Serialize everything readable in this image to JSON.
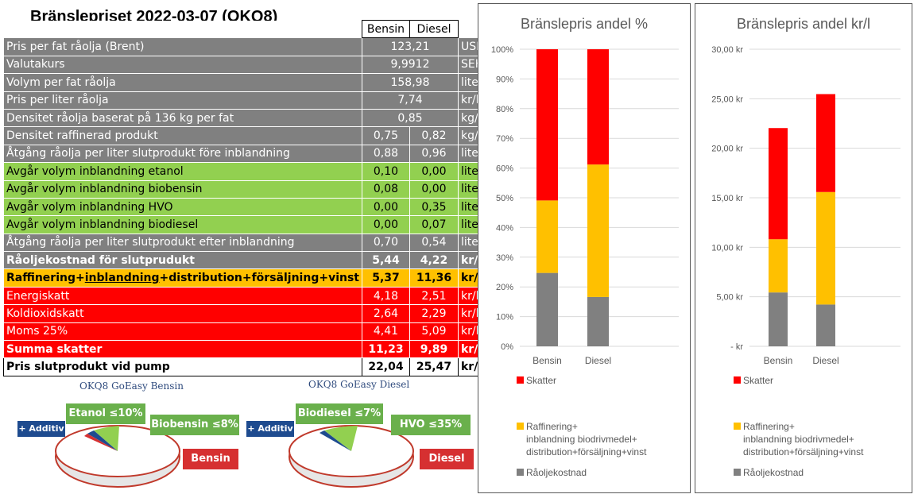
{
  "title": "Bränslepriset 2022-03-07 (OKQ8)",
  "table": {
    "col_bensin": "Bensin",
    "col_diesel": "Diesel",
    "merged_rows": [
      {
        "label": "Pris per fat råolja (Brent)",
        "value": "123,21",
        "unit": "USD"
      },
      {
        "label": "Valutakurs",
        "value": "9,9912",
        "unit": "SEK/USD"
      },
      {
        "label": "Volym per fat råolja",
        "value": "158,98",
        "unit": "liter"
      },
      {
        "label": "Pris per liter råolja",
        "value": "7,74",
        "unit": "kr/liter"
      },
      {
        "label": "Densitet råolja baserat på 136 kg per fat",
        "value": "0,85",
        "unit": "kg/liter"
      }
    ],
    "rows": [
      {
        "label": "Densitet raffinerad produkt",
        "bensin": "0,75",
        "diesel": "0,82",
        "unit": "kg/liter"
      },
      {
        "label": "Åtgång råolja per liter slutprodukt före inblandning",
        "bensin": "0,88",
        "diesel": "0,96",
        "unit": "liter"
      },
      {
        "label": "Avgår volym inblandning etanol",
        "bensin": "0,10",
        "diesel": "0,00",
        "unit": "liter"
      },
      {
        "label": "Avgår volym inblandning biobensin",
        "bensin": "0,08",
        "diesel": "0,00",
        "unit": "liter"
      },
      {
        "label": "Avgår volym inblandning HVO",
        "bensin": "0,00",
        "diesel": "0,35",
        "unit": "liter"
      },
      {
        "label": "Avgår volym inblandning biodiesel",
        "bensin": "0,00",
        "diesel": "0,07",
        "unit": "liter"
      },
      {
        "label": "Åtgång råolja per liter slutprodukt efter inblandning",
        "bensin": "0,70",
        "diesel": "0,54",
        "unit": "liter"
      },
      {
        "label": "Råoljekostnad för slutprudukt",
        "bensin": "5,44",
        "diesel": "4,22",
        "unit": "kr/liter"
      },
      {
        "label_parts": [
          "Raffinering+",
          "inblandning",
          "+distribution+försäljning+vinst"
        ],
        "bensin": "5,37",
        "diesel": "11,36",
        "unit": "kr/liter"
      },
      {
        "label": "Energiskatt",
        "bensin": "4,18",
        "diesel": "2,51",
        "unit": "kr/liter"
      },
      {
        "label": "Koldioxidskatt",
        "bensin": "2,64",
        "diesel": "2,29",
        "unit": "kr/liter"
      },
      {
        "label": "Moms 25%",
        "bensin": "4,41",
        "diesel": "5,09",
        "unit": "kr/liter"
      },
      {
        "label": "Summa skatter",
        "bensin": "11,23",
        "diesel": "9,89",
        "unit": "kr/liter"
      },
      {
        "label": "Pris slutprodukt vid pump",
        "bensin": "22,04",
        "diesel": "25,47",
        "unit": "kr/liter"
      }
    ]
  },
  "pies": {
    "bensin": {
      "title": "OKQ8 GoEasy Bensin",
      "tag_additiv": "+ Additiv",
      "tag_a": "Etanol ≤10%",
      "tag_b": "Biobensin ≤8%",
      "tag_main": "Bensin"
    },
    "diesel": {
      "title": "OKQ8 GoEasy Diesel",
      "tag_additiv": "+ Additiv",
      "tag_a": "Biodiesel ≤7%",
      "tag_b": "HVO ≤35%",
      "tag_main": "Diesel"
    }
  },
  "colors": {
    "skatter": "#ff0000",
    "raffinering": "#ffc000",
    "raolja": "#808080",
    "green": "#92d050"
  },
  "chart_data": [
    {
      "type": "bar",
      "stacked": true,
      "title": "Bränslepris andel %",
      "categories": [
        "Bensin",
        "Diesel"
      ],
      "y_ticks": [
        "0%",
        "10%",
        "20%",
        "30%",
        "40%",
        "50%",
        "60%",
        "70%",
        "80%",
        "90%",
        "100%"
      ],
      "ylim": [
        0,
        100
      ],
      "grid": true,
      "legend_position": "bottom",
      "series": [
        {
          "name": "Råoljekostnad",
          "color": "#808080",
          "values": [
            24.7,
            16.6
          ]
        },
        {
          "name": "Raffinering+ inblandning biodrivmedel+ distribution+försäljning+vinst",
          "color": "#ffc000",
          "values": [
            24.4,
            44.6
          ]
        },
        {
          "name": "Skatter",
          "color": "#ff0000",
          "values": [
            50.9,
            38.8
          ]
        }
      ],
      "legend": [
        {
          "name_lines": [
            "Skatter"
          ],
          "color": "#ff0000"
        },
        {
          "name_lines": [
            "Raffinering+",
            "inblandning biodrivmedel+",
            "distribution+försäljning+vinst"
          ],
          "color": "#ffc000"
        },
        {
          "name_lines": [
            "Råoljekostnad"
          ],
          "color": "#808080"
        }
      ]
    },
    {
      "type": "bar",
      "stacked": true,
      "title": "Bränslepris andel kr/l",
      "categories": [
        "Bensin",
        "Diesel"
      ],
      "y_ticks": [
        "-  kr",
        "5,00 kr",
        "10,00 kr",
        "15,00 kr",
        "20,00 kr",
        "25,00 kr",
        "30,00 kr"
      ],
      "ylim": [
        0,
        30
      ],
      "grid": true,
      "legend_position": "bottom",
      "series": [
        {
          "name": "Råoljekostnad",
          "color": "#808080",
          "values": [
            5.44,
            4.22
          ]
        },
        {
          "name": "Raffinering+ inblandning biodrivmedel+ distribution+försäljning+vinst",
          "color": "#ffc000",
          "values": [
            5.37,
            11.36
          ]
        },
        {
          "name": "Skatter",
          "color": "#ff0000",
          "values": [
            11.23,
            9.89
          ]
        }
      ],
      "legend": [
        {
          "name_lines": [
            "Skatter"
          ],
          "color": "#ff0000"
        },
        {
          "name_lines": [
            "Raffinering+",
            "inblandning biodrivmedel+",
            "distribution+försäljning+vinst"
          ],
          "color": "#ffc000"
        },
        {
          "name_lines": [
            "Råoljekostnad"
          ],
          "color": "#808080"
        }
      ]
    }
  ]
}
